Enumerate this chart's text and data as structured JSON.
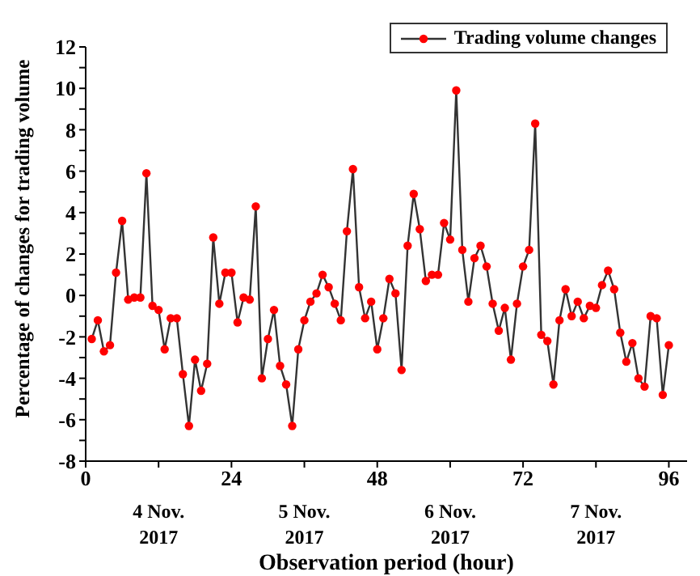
{
  "chart_data": {
    "type": "line",
    "xlabel": "Observation period (hour)",
    "ylabel": "Percentage of changes for trading volume",
    "x": [
      1,
      2,
      3,
      4,
      5,
      6,
      7,
      8,
      9,
      10,
      11,
      12,
      13,
      14,
      15,
      16,
      17,
      18,
      19,
      20,
      21,
      22,
      23,
      24,
      25,
      26,
      27,
      28,
      29,
      30,
      31,
      32,
      33,
      34,
      35,
      36,
      37,
      38,
      39,
      40,
      41,
      42,
      43,
      44,
      45,
      46,
      47,
      48,
      49,
      50,
      51,
      52,
      53,
      54,
      55,
      56,
      57,
      58,
      59,
      60,
      61,
      62,
      63,
      64,
      65,
      66,
      67,
      68,
      69,
      70,
      71,
      72,
      73,
      74,
      75,
      76,
      77,
      78,
      79,
      80,
      81,
      82,
      83,
      84,
      85,
      86,
      87,
      88,
      89,
      90,
      91,
      92,
      93,
      94,
      95,
      96
    ],
    "series": [
      {
        "name": "Trading volume changes",
        "color": "#ff0000",
        "values": [
          -2.1,
          -1.2,
          -2.7,
          -2.4,
          1.1,
          3.6,
          -0.2,
          -0.1,
          -0.1,
          5.9,
          -0.5,
          -0.7,
          -2.6,
          -1.1,
          -1.1,
          -3.8,
          -6.3,
          -3.1,
          -4.6,
          -3.3,
          2.8,
          -0.4,
          1.1,
          1.1,
          -1.3,
          -0.1,
          -0.2,
          4.3,
          -4.0,
          -2.1,
          -0.7,
          -3.4,
          -4.3,
          -6.3,
          -2.6,
          -1.2,
          -0.3,
          0.1,
          1.0,
          0.4,
          -0.4,
          -1.2,
          3.1,
          6.1,
          0.4,
          -1.1,
          -0.3,
          -2.6,
          -1.1,
          0.8,
          0.1,
          -3.6,
          2.4,
          4.9,
          3.2,
          0.7,
          1.0,
          1.0,
          3.5,
          2.7,
          9.9,
          2.2,
          -0.3,
          1.8,
          2.4,
          1.4,
          -0.4,
          -1.7,
          -0.6,
          -3.1,
          -0.4,
          1.4,
          2.2,
          8.3,
          -1.9,
          -2.2,
          -4.3,
          -1.2,
          0.3,
          -1.0,
          -0.3,
          -1.1,
          -0.5,
          -0.6,
          0.5,
          1.2,
          0.3,
          -1.8,
          -3.2,
          -2.3,
          -4.0,
          -4.4,
          -1.0,
          -1.1,
          -4.8,
          -2.4
        ]
      }
    ],
    "xlim": [
      0,
      99
    ],
    "xticks": [
      0,
      {
        "value": 12,
        "label": null
      },
      24,
      {
        "value": 36,
        "label": null
      },
      48,
      {
        "value": 60,
        "label": null
      },
      72,
      {
        "value": 84,
        "label": null
      },
      96
    ],
    "ylim": [
      -8,
      12
    ],
    "yticks": [
      -8,
      {
        "value": -7,
        "label": null
      },
      -6,
      {
        "value": -5,
        "label": null
      },
      -4,
      {
        "value": -3,
        "label": null
      },
      -2,
      {
        "value": -1,
        "label": null
      },
      0,
      {
        "value": 1,
        "label": null
      },
      2,
      {
        "value": 3,
        "label": null
      },
      4,
      {
        "value": 5,
        "label": null
      },
      6,
      {
        "value": 7,
        "label": null
      },
      8,
      {
        "value": 9,
        "label": null
      },
      10,
      {
        "value": 11,
        "label": null
      },
      12
    ],
    "annotations": [
      "4 Nov.\n2017",
      "5 Nov.\n2017",
      "6 Nov.\n2017",
      "7 Nov.\n2017"
    ],
    "legend": "top right",
    "marker": "circle",
    "line_style": "solid",
    "grid": false
  }
}
